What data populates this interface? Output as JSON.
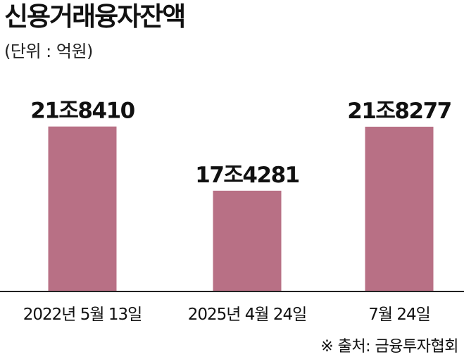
{
  "chart_data": {
    "type": "bar",
    "title": "신용거래융자잔액",
    "unit_label": "(단위 : 억원)",
    "categories": [
      "2022년 5월 13일",
      "2025년 4월 24일",
      "7월 24일"
    ],
    "values": [
      218410,
      174281,
      218277
    ],
    "value_labels": [
      "21조8410",
      "17조4281",
      "21조8277"
    ],
    "ylim": [
      105000,
      226000
    ],
    "grid": false,
    "legend": "none",
    "source": "※ 출처: 금융투자협회"
  },
  "colors": {
    "bar": "#b87085",
    "axis": "#222222",
    "text": "#111111"
  }
}
